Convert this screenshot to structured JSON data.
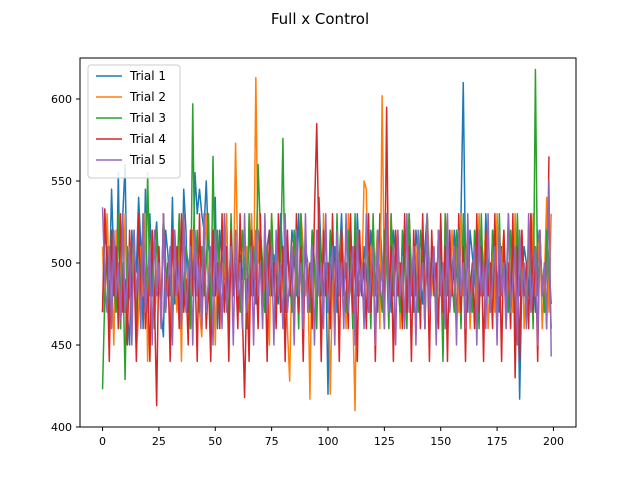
{
  "chart_data": {
    "type": "line",
    "title": "Full x Control",
    "xlabel": "",
    "ylabel": "",
    "xlim": [
      -10,
      210
    ],
    "ylim": [
      400,
      625
    ],
    "xticks": [
      0,
      25,
      50,
      75,
      100,
      125,
      150,
      175,
      200
    ],
    "yticks": [
      400,
      450,
      500,
      550,
      600
    ],
    "grid": false,
    "legend_position": "top-left",
    "series": [
      {
        "name": "Trial 1",
        "color": "#1f77b4",
        "values": [
          470,
          520,
          505,
          480,
          545,
          500,
          470,
          555,
          460,
          530,
          560,
          470,
          450,
          520,
          490,
          495,
          540,
          510,
          460,
          545,
          470,
          530,
          480,
          510,
          525,
          495,
          470,
          455,
          520,
          505,
          480,
          540,
          475,
          495,
          510,
          470,
          545,
          520,
          470,
          505,
          490,
          555,
          530,
          545,
          530,
          520,
          550,
          510,
          500,
          480,
          540,
          460,
          520,
          500,
          495,
          530,
          470,
          510,
          480,
          520,
          470,
          505,
          490,
          515,
          500,
          480,
          530,
          495,
          475,
          520,
          505,
          490,
          470,
          510,
          520,
          480,
          505,
          495,
          475,
          530,
          500,
          470,
          510,
          490,
          520,
          505,
          480,
          530,
          495,
          470,
          510,
          500,
          480,
          520,
          495,
          470,
          540,
          505,
          480,
          500,
          420,
          520,
          490,
          510,
          470,
          500,
          530,
          490,
          475,
          505,
          520,
          490,
          470,
          530,
          500,
          480,
          510,
          495,
          470,
          520,
          505,
          490,
          470,
          530,
          500,
          480,
          510,
          495,
          470,
          520,
          505,
          490,
          470,
          510,
          500,
          480,
          530,
          495,
          470,
          520,
          505,
          490,
          475,
          510,
          530,
          480,
          500,
          495,
          470,
          520,
          505,
          490,
          480,
          510,
          500,
          490,
          520,
          495,
          470,
          530,
          610,
          495,
          470,
          520,
          505,
          490,
          470,
          510,
          500,
          480,
          530,
          495,
          470,
          520,
          505,
          490,
          470,
          510,
          500,
          480,
          530,
          495,
          470,
          520,
          505,
          417,
          490,
          510,
          500,
          480,
          530,
          495,
          470,
          520,
          505,
          490,
          470,
          510,
          500,
          475
        ]
      },
      {
        "name": "Trial 2",
        "color": "#ff7f0e",
        "values": [
          510,
          470,
          530,
          490,
          500,
          450,
          520,
          480,
          510,
          470,
          530,
          460,
          500,
          490,
          520,
          445,
          470,
          510,
          480,
          530,
          440,
          500,
          520,
          460,
          490,
          510,
          470,
          530,
          480,
          500,
          450,
          520,
          490,
          470,
          510,
          440,
          530,
          480,
          500,
          460,
          520,
          490,
          510,
          470,
          455,
          500,
          530,
          480,
          490,
          510,
          450,
          520,
          470,
          500,
          490,
          530,
          460,
          510,
          480,
          573,
          500,
          470,
          520,
          490,
          510,
          460,
          530,
          480,
          613,
          500,
          520,
          470,
          490,
          510,
          450,
          530,
          480,
          500,
          520,
          470,
          490,
          510,
          460,
          428,
          500,
          520,
          490,
          470,
          530,
          510,
          480,
          500,
          417,
          520,
          490,
          470,
          510,
          450,
          530,
          480,
          500,
          420,
          490,
          470,
          510,
          480,
          520,
          500,
          460,
          530,
          490,
          470,
          410,
          520,
          500,
          490,
          550,
          545,
          470,
          510,
          480,
          500,
          520,
          460,
          602,
          490,
          510,
          470,
          530,
          480,
          500,
          520,
          460,
          490,
          510,
          470,
          530,
          480,
          500,
          510,
          470,
          490,
          520,
          460,
          530,
          500,
          480,
          510,
          470,
          520,
          490,
          460,
          530,
          500,
          480,
          520,
          490,
          510,
          470,
          530,
          480,
          500,
          520,
          460,
          490,
          510,
          470,
          530,
          480,
          500,
          520,
          460,
          490,
          510,
          470,
          530,
          480,
          500,
          520,
          460,
          490,
          510,
          470,
          530,
          480,
          500,
          520,
          460,
          490,
          510,
          470,
          530,
          480,
          500,
          520,
          460,
          490,
          540,
          470,
          530
        ]
      },
      {
        "name": "Trial 3",
        "color": "#2ca02c",
        "values": [
          423,
          480,
          510,
          460,
          520,
          490,
          470,
          530,
          460,
          500,
          429,
          510,
          480,
          470,
          520,
          460,
          500,
          490,
          530,
          470,
          555,
          480,
          510,
          460,
          520,
          490,
          470,
          530,
          500,
          480,
          510,
          460,
          520,
          490,
          530,
          470,
          480,
          510,
          500,
          460,
          597,
          490,
          520,
          470,
          510,
          480,
          500,
          530,
          460,
          565,
          480,
          520,
          490,
          470,
          510,
          500,
          460,
          530,
          480,
          510,
          490,
          470,
          520,
          500,
          460,
          530,
          480,
          510,
          490,
          560,
          520,
          500,
          470,
          510,
          480,
          530,
          490,
          470,
          520,
          500,
          576,
          480,
          510,
          490,
          470,
          520,
          500,
          460,
          530,
          480,
          510,
          490,
          470,
          520,
          500,
          460,
          530,
          480,
          510,
          490,
          470,
          520,
          500,
          460,
          530,
          480,
          510,
          490,
          470,
          520,
          500,
          460,
          530,
          480,
          510,
          490,
          470,
          520,
          500,
          460,
          530,
          480,
          510,
          490,
          470,
          520,
          500,
          460,
          530,
          480,
          510,
          490,
          470,
          520,
          500,
          460,
          530,
          480,
          510,
          490,
          470,
          520,
          500,
          460,
          530,
          480,
          510,
          490,
          470,
          520,
          500,
          440,
          530,
          480,
          510,
          490,
          470,
          520,
          500,
          460,
          530,
          480,
          510,
          490,
          470,
          520,
          500,
          460,
          530,
          480,
          510,
          490,
          470,
          520,
          500,
          460,
          530,
          480,
          510,
          490,
          470,
          520,
          500,
          460,
          530,
          480,
          510,
          490,
          470,
          520,
          500,
          460,
          618,
          480,
          510,
          490,
          470,
          520,
          500,
          460
        ]
      },
      {
        "name": "Trial 4",
        "color": "#d62728",
        "values": [
          470,
          533,
          500,
          440,
          520,
          480,
          510,
          460,
          530,
          470,
          490,
          450,
          520,
          480,
          500,
          440,
          530,
          470,
          510,
          460,
          490,
          440,
          520,
          480,
          413,
          510,
          460,
          530,
          470,
          500,
          440,
          520,
          480,
          510,
          460,
          530,
          470,
          490,
          450,
          520,
          480,
          500,
          440,
          530,
          470,
          510,
          460,
          490,
          440,
          520,
          480,
          500,
          460,
          530,
          470,
          510,
          440,
          520,
          480,
          500,
          460,
          530,
          470,
          418,
          490,
          440,
          520,
          480,
          500,
          460,
          530,
          470,
          510,
          440,
          520,
          480,
          500,
          460,
          530,
          470,
          510,
          440,
          520,
          480,
          500,
          460,
          530,
          470,
          510,
          440,
          520,
          480,
          500,
          460,
          530,
          585,
          510,
          440,
          520,
          480,
          500,
          460,
          530,
          470,
          510,
          440,
          520,
          480,
          500,
          460,
          530,
          470,
          510,
          440,
          520,
          480,
          500,
          460,
          530,
          470,
          510,
          440,
          520,
          480,
          500,
          460,
          595,
          470,
          510,
          440,
          520,
          480,
          500,
          460,
          530,
          470,
          510,
          440,
          520,
          480,
          500,
          460,
          530,
          470,
          510,
          440,
          520,
          480,
          500,
          460,
          530,
          470,
          510,
          440,
          520,
          480,
          500,
          460,
          530,
          470,
          510,
          440,
          520,
          480,
          500,
          460,
          530,
          470,
          510,
          440,
          520,
          480,
          500,
          460,
          530,
          470,
          510,
          440,
          520,
          480,
          500,
          460,
          530,
          430,
          510,
          440,
          520,
          480,
          500,
          460,
          530,
          470,
          510,
          440,
          520,
          480,
          500,
          460,
          565
        ]
      },
      {
        "name": "Trial 5",
        "color": "#9467bd",
        "values": [
          534,
          490,
          470,
          510,
          460,
          520,
          480,
          500,
          465,
          530,
          470,
          490,
          510,
          450,
          520,
          480,
          500,
          460,
          530,
          470,
          490,
          510,
          450,
          520,
          480,
          500,
          460,
          530,
          470,
          490,
          510,
          450,
          520,
          480,
          500,
          460,
          530,
          470,
          490,
          510,
          450,
          520,
          480,
          500,
          460,
          530,
          470,
          490,
          510,
          450,
          520,
          480,
          500,
          460,
          530,
          470,
          490,
          510,
          450,
          520,
          480,
          500,
          460,
          530,
          470,
          490,
          510,
          450,
          520,
          480,
          500,
          460,
          530,
          470,
          490,
          510,
          450,
          520,
          480,
          500,
          460,
          530,
          470,
          490,
          510,
          450,
          520,
          480,
          500,
          460,
          530,
          470,
          490,
          510,
          450,
          520,
          480,
          500,
          460,
          530,
          470,
          490,
          510,
          450,
          520,
          480,
          500,
          460,
          530,
          470,
          490,
          510,
          450,
          520,
          480,
          500,
          460,
          530,
          470,
          490,
          510,
          450,
          520,
          480,
          500,
          460,
          530,
          470,
          490,
          510,
          450,
          520,
          480,
          500,
          460,
          530,
          470,
          490,
          510,
          450,
          520,
          480,
          500,
          460,
          530,
          470,
          490,
          510,
          450,
          520,
          480,
          500,
          460,
          530,
          470,
          490,
          510,
          450,
          520,
          480,
          500,
          460,
          530,
          470,
          490,
          510,
          450,
          520,
          480,
          500,
          460,
          530,
          470,
          490,
          510,
          450,
          520,
          480,
          500,
          460,
          530,
          470,
          490,
          510,
          450,
          520,
          480,
          500,
          460,
          530,
          470,
          490,
          510,
          450,
          520,
          480,
          500,
          460,
          550,
          443
        ]
      }
    ]
  }
}
